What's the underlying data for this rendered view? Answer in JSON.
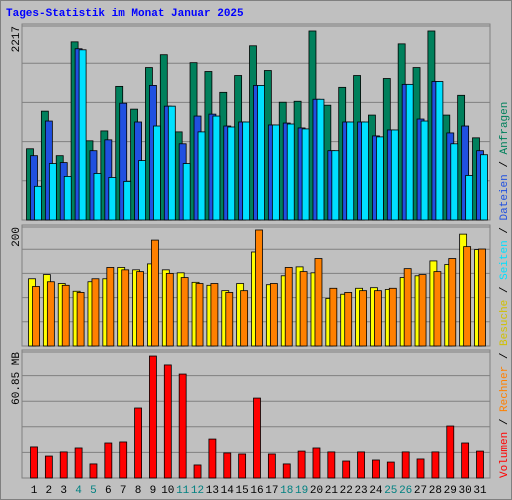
{
  "chart_data": {
    "type": "bar",
    "title": "Tages-Statistik im Monat Januar 2025",
    "title_color": "#0000ff",
    "categories": [
      "1",
      "2",
      "3",
      "4",
      "5",
      "6",
      "7",
      "8",
      "9",
      "10",
      "11",
      "12",
      "13",
      "14",
      "15",
      "16",
      "17",
      "18",
      "19",
      "20",
      "21",
      "22",
      "23",
      "24",
      "25",
      "26",
      "27",
      "28",
      "29",
      "30",
      "31"
    ],
    "weekend_indices": [
      3,
      4,
      10,
      11,
      17,
      18,
      24,
      25
    ],
    "weekend_color": "#008080",
    "legend_separator": " / ",
    "panels": [
      {
        "ylim": [
          0,
          2217
        ],
        "yticks": [
          2217
        ],
        "grid": true,
        "series": [
          {
            "name": "Anfragen",
            "color": "#00805c",
            "values": [
              814,
              1244,
              735,
              2036,
              905,
              1018,
              1527,
              1267,
              1742,
              1889,
              1007,
              1798,
              1697,
              1459,
              1651,
              1991,
              1708,
              1346,
              1357,
              2160,
              1312,
              1516,
              1651,
              1199,
              1617,
              2013,
              1742,
              2160,
              1199,
              1425,
              939
            ]
          },
          {
            "name": "Dateien",
            "color": "#2050e0",
            "values": [
              735,
              1131,
              656,
              1957,
              792,
              916,
              1335,
              1120,
              1538,
              1301,
              871,
              1188,
              1210,
              1074,
              1120,
              1538,
              1086,
              1108,
              1052,
              1380,
              792,
              1120,
              1120,
              961,
              1029,
              1550,
              1154,
              1583,
              995,
              1074,
              792
            ]
          },
          {
            "name": "Seiten",
            "color": "#00e0ff",
            "values": [
              385,
              645,
              498,
              1945,
              532,
              486,
              441,
              679,
              1074,
              1301,
              645,
              1007,
              1188,
              1063,
              1120,
              1538,
              1086,
              1097,
              1041,
              1380,
              792,
              1120,
              1120,
              950,
              1029,
              1550,
              1131,
              1583,
              871,
              509,
              746
            ]
          }
        ]
      },
      {
        "ylim": [
          0,
          200
        ],
        "yticks": [
          200
        ],
        "grid": true,
        "series": [
          {
            "name": "Besuche",
            "color": "#ffff00",
            "text_color": "#d0c000",
            "values": [
              113,
              120,
              105,
              92,
              108,
              113,
              132,
              128,
              138,
              128,
              123,
              107,
              102,
              93,
              105,
              158,
              103,
              118,
              133,
              123,
              80,
              87,
              97,
              98,
              95,
              115,
              118,
              143,
              137,
              188,
              162
            ]
          },
          {
            "name": "Rechner",
            "color": "#ff8000",
            "values": [
              100,
              108,
              102,
              90,
              113,
              132,
              128,
              125,
              178,
              122,
              115,
              105,
              105,
              90,
              93,
              195,
              105,
              132,
              125,
              147,
              97,
              90,
              93,
              93,
              97,
              130,
              120,
              125,
              147,
              167,
              163
            ]
          }
        ]
      },
      {
        "ylim": [
          0,
          60.85
        ],
        "yticks": [
          {
            "value": 60.85,
            "label": "60.85 MB"
          }
        ],
        "grid": true,
        "series": [
          {
            "name": "Volumen",
            "color": "#ff0000",
            "values": [
              15.0,
              10.6,
              12.6,
              14.5,
              6.8,
              16.9,
              17.4,
              33.8,
              58.9,
              54.6,
              50.2,
              6.3,
              18.8,
              12.1,
              11.6,
              38.6,
              11.6,
              6.8,
              13.0,
              14.5,
              12.6,
              8.2,
              12.6,
              8.7,
              7.7,
              12.6,
              9.2,
              12.6,
              25.1,
              16.9,
              13.0
            ]
          }
        ]
      }
    ]
  }
}
